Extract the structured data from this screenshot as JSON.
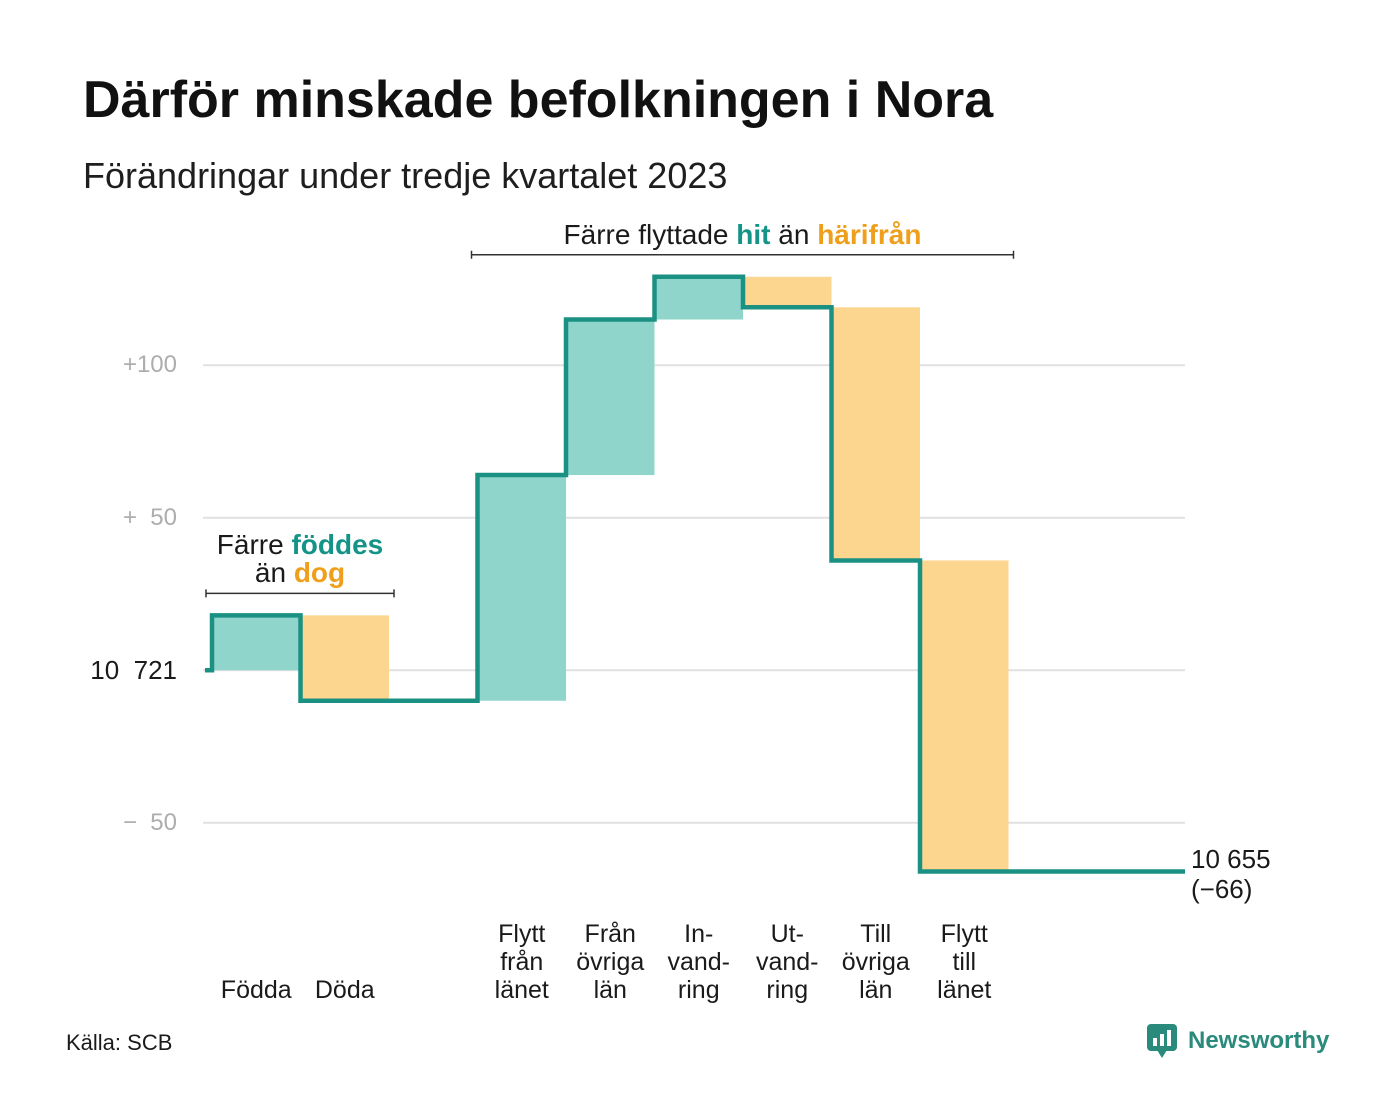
{
  "chart_data": {
    "type": "bar",
    "waterfall": true,
    "title": "Därför minskade befolkningen i Nora",
    "subtitle": "Förändringar under tredje kvartalet 2023",
    "categories": [
      "Födda",
      "Döda",
      "Flytt\nfrån\nlänet",
      "Från\növriga\nlän",
      "In-\nvand-\nring",
      "Ut-\nvand-\nring",
      "Till\növriga\nlän",
      "Flytt\ntill\nlänet"
    ],
    "values": [
      18,
      -28,
      74,
      51,
      14,
      -10,
      -83,
      -102
    ],
    "baseline": 10721,
    "final": 10655,
    "end_label": "10 655",
    "net_change_label": "(−66)",
    "yticks": [
      {
        "value": 100,
        "label": "+100"
      },
      {
        "value": 50,
        "label": "+  50"
      },
      {
        "value": 0,
        "label": "10  721"
      },
      {
        "value": -50,
        "label": "−  50"
      }
    ],
    "ylim": [
      -75,
      145
    ],
    "grid": true,
    "annotations": [
      {
        "first_category": 0,
        "last_category": 1,
        "lines": [
          [
            {
              "text": "Färre ",
              "color": "#1a1a1a",
              "bold": false
            },
            {
              "text": "föddes",
              "color": "#149487",
              "bold": true
            }
          ],
          [
            {
              "text": "än ",
              "color": "#1a1a1a",
              "bold": false
            },
            {
              "text": "dog",
              "color": "#ee9f1c",
              "bold": true
            }
          ]
        ]
      },
      {
        "first_category": 2,
        "last_category": 7,
        "lines": [
          [
            {
              "text": "Färre flyttade ",
              "color": "#1a1a1a",
              "bold": false
            },
            {
              "text": "hit",
              "color": "#149487",
              "bold": true
            },
            {
              "text": " än ",
              "color": "#1a1a1a",
              "bold": false
            },
            {
              "text": "härifrån",
              "color": "#ee9f1c",
              "bold": true
            }
          ]
        ]
      }
    ]
  },
  "source": "Källa: SCB",
  "logo": {
    "text": "Newsworthy",
    "icon": "newsworthy-logo-icon"
  },
  "colors": {
    "increase_fill": "#8fd5cb",
    "decrease_fill": "#fcd68f",
    "step_line": "#1b9183",
    "gridline": "#e1e1e1",
    "tick_text": "#adadad",
    "bracket": "#333333",
    "logo": "#2a8a7b"
  }
}
